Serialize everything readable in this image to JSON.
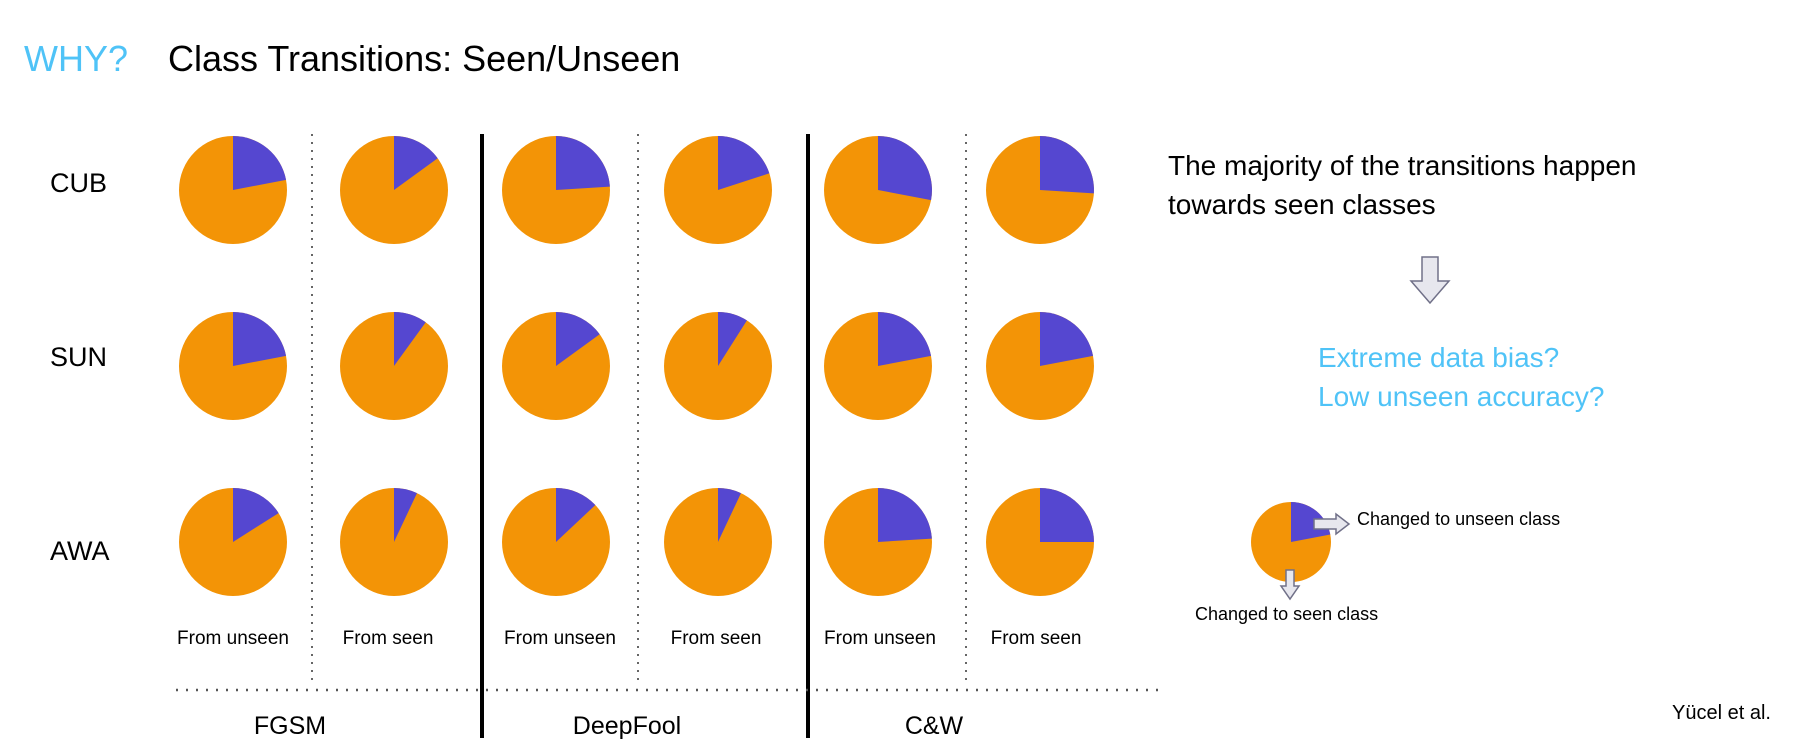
{
  "header": {
    "why": "WHY?",
    "title": "Class Transitions: Seen/Unseen"
  },
  "colors": {
    "seen": "#f39406",
    "unseen": "#5547d0",
    "accent": "#4fc3f7"
  },
  "chart_data": {
    "type": "pie",
    "title": "Class Transitions: Seen/Unseen",
    "rows": [
      "CUB",
      "SUN",
      "AWA"
    ],
    "attacks": [
      "FGSM",
      "DeepFool",
      "C&W"
    ],
    "columns": [
      "From unseen",
      "From seen",
      "From unseen",
      "From seen",
      "From unseen",
      "From seen"
    ],
    "slices": [
      "Changed to unseen class",
      "Changed to seen class"
    ],
    "unseen_fraction": [
      [
        0.22,
        0.15,
        0.24,
        0.2,
        0.28,
        0.26
      ],
      [
        0.22,
        0.1,
        0.15,
        0.09,
        0.22,
        0.22
      ],
      [
        0.16,
        0.07,
        0.13,
        0.07,
        0.24,
        0.25
      ]
    ]
  },
  "right": {
    "statement": "The majority of the transitions happen towards seen classes",
    "question1": "Extreme data bias?",
    "question2": "Low unseen accuracy?"
  },
  "legend": {
    "unseen_label": "Changed to unseen class",
    "seen_label": "Changed to seen class",
    "unseen_fraction": 0.22
  },
  "citation": "Yücel et al."
}
